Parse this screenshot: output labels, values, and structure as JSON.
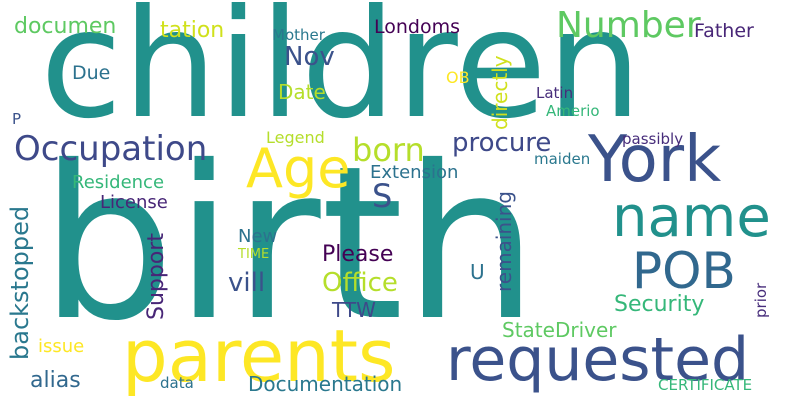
{
  "words": [
    {
      "id": "children",
      "text": "children",
      "color": "#21918c"
    },
    {
      "id": "birth",
      "text": "birth",
      "color": "#21918c"
    },
    {
      "id": "parents",
      "text": "parents",
      "color": "#fde725"
    },
    {
      "id": "requested",
      "text": "requested",
      "color": "#3b528b"
    },
    {
      "id": "york",
      "text": "York",
      "color": "#3b528b"
    },
    {
      "id": "name",
      "text": "name",
      "color": "#21918c"
    },
    {
      "id": "pob",
      "text": "POB",
      "color": "#31688e"
    },
    {
      "id": "age",
      "text": "Age",
      "color": "#fde725"
    },
    {
      "id": "occupation",
      "text": "Occupation",
      "color": "#3e4989"
    },
    {
      "id": "number",
      "text": "Number",
      "color": "#5ec962"
    },
    {
      "id": "born",
      "text": "born",
      "color": "#b5de2b"
    },
    {
      "id": "procure",
      "text": "procure",
      "color": "#3e4989"
    },
    {
      "id": "documen",
      "text": "documen",
      "color": "#5ec962"
    },
    {
      "id": "tation",
      "text": "tation",
      "color": "#d0e11c"
    },
    {
      "id": "mother",
      "text": "Mother",
      "color": "#2a788e"
    },
    {
      "id": "londoms",
      "text": "Londoms",
      "color": "#440154"
    },
    {
      "id": "father",
      "text": "Father",
      "color": "#482677"
    },
    {
      "id": "nov",
      "text": "Nov",
      "color": "#3b528b"
    },
    {
      "id": "due",
      "text": "Due",
      "color": "#2c728e"
    },
    {
      "id": "date",
      "text": "Date",
      "color": "#b5de2b"
    },
    {
      "id": "ob",
      "text": "OB",
      "color": "#fde725"
    },
    {
      "id": "latin",
      "text": "Latin",
      "color": "#472d7b"
    },
    {
      "id": "amerio",
      "text": "Amerio",
      "color": "#35b779"
    },
    {
      "id": "p",
      "text": "P",
      "color": "#3b528b"
    },
    {
      "id": "legend",
      "text": "Legend",
      "color": "#b5de2b"
    },
    {
      "id": "passibly",
      "text": "passibly",
      "color": "#472d7b"
    },
    {
      "id": "maiden",
      "text": "maiden",
      "color": "#2a788e"
    },
    {
      "id": "s",
      "text": "S",
      "color": "#3b528b"
    },
    {
      "id": "extension",
      "text": "Extension",
      "color": "#2c728e"
    },
    {
      "id": "residence",
      "text": "Residence",
      "color": "#35b779"
    },
    {
      "id": "license",
      "text": "License",
      "color": "#482677"
    },
    {
      "id": "new",
      "text": "New",
      "color": "#2c728e"
    },
    {
      "id": "time",
      "text": "TIME",
      "color": "#b5de2b"
    },
    {
      "id": "please",
      "text": "Please",
      "color": "#440154"
    },
    {
      "id": "vill",
      "text": "vill",
      "color": "#3b528b"
    },
    {
      "id": "office",
      "text": "Office",
      "color": "#b5de2b"
    },
    {
      "id": "u",
      "text": "U",
      "color": "#2c728e"
    },
    {
      "id": "security",
      "text": "Security",
      "color": "#35b779"
    },
    {
      "id": "ttw",
      "text": "TTW",
      "color": "#3e4989"
    },
    {
      "id": "statedriver",
      "text": "StateDriver",
      "color": "#5ec962"
    },
    {
      "id": "issue",
      "text": "issue",
      "color": "#fde725"
    },
    {
      "id": "alias",
      "text": "alias",
      "color": "#31688e"
    },
    {
      "id": "data",
      "text": "data",
      "color": "#2c728e"
    },
    {
      "id": "documentation",
      "text": "Documentation",
      "color": "#2a788e"
    },
    {
      "id": "certificate",
      "text": "CERTIFICATE",
      "color": "#35b779"
    },
    {
      "id": "directly",
      "text": "directly",
      "color": "#d0e11c"
    },
    {
      "id": "backstopped",
      "text": "backstopped",
      "color": "#2a788e"
    },
    {
      "id": "support",
      "text": "Support",
      "color": "#482677"
    },
    {
      "id": "remaining",
      "text": "remaining",
      "color": "#3b528b"
    },
    {
      "id": "prior",
      "text": "prior",
      "color": "#472d7b"
    }
  ]
}
